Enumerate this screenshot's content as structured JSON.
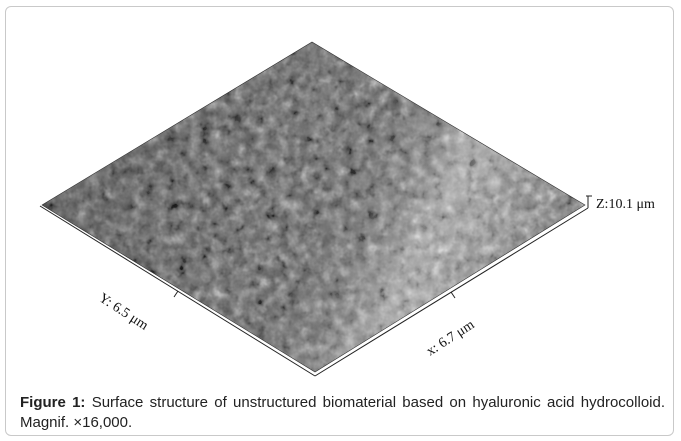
{
  "figure": {
    "z_label": "Z:10.1 μm",
    "y_label": "Y: 6.5 μm",
    "x_label": "x: 6.7 μm",
    "caption_label": "Figure 1:",
    "caption_text": "Surface structure of unstructured biomaterial based on hyaluronic acid hydrocolloid. Magnif. ×16,000."
  }
}
